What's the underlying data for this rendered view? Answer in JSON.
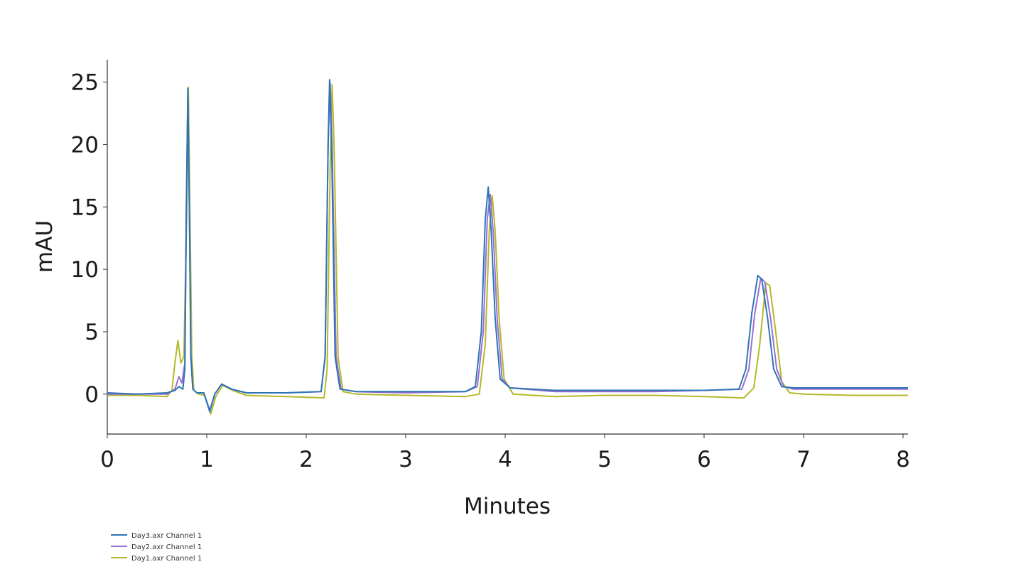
{
  "chart_data": {
    "type": "line",
    "title": "",
    "xlabel": "Minutes",
    "ylabel": "mAU",
    "xlim": [
      0,
      8.05
    ],
    "ylim": [
      -3.2,
      26.8
    ],
    "x_ticks": [
      0,
      1,
      2,
      3,
      4,
      5,
      6,
      7,
      8
    ],
    "y_ticks": [
      0,
      5,
      10,
      15,
      20,
      25
    ],
    "grid": false,
    "legend_position": "bottom-left",
    "series": [
      {
        "name": "Day3.axr Channel 1",
        "color": "#2e75b6",
        "points": [
          [
            0,
            0.1
          ],
          [
            0.3,
            0.0
          ],
          [
            0.6,
            0.1
          ],
          [
            0.68,
            0.3
          ],
          [
            0.72,
            0.6
          ],
          [
            0.76,
            0.4
          ],
          [
            0.78,
            2.0
          ],
          [
            0.795,
            15
          ],
          [
            0.81,
            24.5
          ],
          [
            0.825,
            15
          ],
          [
            0.84,
            3
          ],
          [
            0.86,
            0.4
          ],
          [
            0.9,
            0.1
          ],
          [
            0.97,
            0.1
          ],
          [
            1.03,
            -1.4
          ],
          [
            1.08,
            0.0
          ],
          [
            1.15,
            0.8
          ],
          [
            1.25,
            0.4
          ],
          [
            1.4,
            0.1
          ],
          [
            1.8,
            0.1
          ],
          [
            2.15,
            0.2
          ],
          [
            2.19,
            3
          ],
          [
            2.22,
            20
          ],
          [
            2.235,
            25.2
          ],
          [
            2.255,
            20
          ],
          [
            2.29,
            3
          ],
          [
            2.34,
            0.4
          ],
          [
            2.5,
            0.2
          ],
          [
            3.0,
            0.2
          ],
          [
            3.6,
            0.2
          ],
          [
            3.7,
            0.6
          ],
          [
            3.76,
            5
          ],
          [
            3.8,
            14
          ],
          [
            3.83,
            16.6
          ],
          [
            3.86,
            13
          ],
          [
            3.9,
            6
          ],
          [
            3.95,
            1.2
          ],
          [
            4.05,
            0.5
          ],
          [
            4.5,
            0.3
          ],
          [
            5.0,
            0.3
          ],
          [
            5.5,
            0.3
          ],
          [
            6.0,
            0.3
          ],
          [
            6.35,
            0.4
          ],
          [
            6.42,
            2
          ],
          [
            6.48,
            6.5
          ],
          [
            6.54,
            9.5
          ],
          [
            6.58,
            9.2
          ],
          [
            6.64,
            6
          ],
          [
            6.7,
            2
          ],
          [
            6.78,
            0.6
          ],
          [
            6.9,
            0.5
          ],
          [
            7.5,
            0.5
          ],
          [
            8.05,
            0.5
          ]
        ]
      },
      {
        "name": "Day2.axr Channel 1",
        "color": "#9b6fd4",
        "points": [
          [
            0,
            0.0
          ],
          [
            0.3,
            0.0
          ],
          [
            0.6,
            0.0
          ],
          [
            0.68,
            0.4
          ],
          [
            0.72,
            1.4
          ],
          [
            0.75,
            0.9
          ],
          [
            0.78,
            2.5
          ],
          [
            0.795,
            15
          ],
          [
            0.81,
            24.5
          ],
          [
            0.825,
            15
          ],
          [
            0.84,
            3
          ],
          [
            0.86,
            0.4
          ],
          [
            0.9,
            0.1
          ],
          [
            0.97,
            0.1
          ],
          [
            1.03,
            -1.3
          ],
          [
            1.08,
            0.0
          ],
          [
            1.15,
            0.8
          ],
          [
            1.25,
            0.4
          ],
          [
            1.4,
            0.1
          ],
          [
            1.8,
            0.1
          ],
          [
            2.15,
            0.2
          ],
          [
            2.19,
            3
          ],
          [
            2.22,
            20
          ],
          [
            2.24,
            25.0
          ],
          [
            2.26,
            20
          ],
          [
            2.3,
            3
          ],
          [
            2.35,
            0.4
          ],
          [
            2.5,
            0.2
          ],
          [
            3.0,
            0.1
          ],
          [
            3.6,
            0.2
          ],
          [
            3.72,
            0.6
          ],
          [
            3.78,
            5
          ],
          [
            3.82,
            14
          ],
          [
            3.85,
            16.0
          ],
          [
            3.88,
            13
          ],
          [
            3.92,
            6
          ],
          [
            3.97,
            1.2
          ],
          [
            4.05,
            0.5
          ],
          [
            4.5,
            0.2
          ],
          [
            5.0,
            0.2
          ],
          [
            5.5,
            0.2
          ],
          [
            6.0,
            0.3
          ],
          [
            6.38,
            0.4
          ],
          [
            6.45,
            2
          ],
          [
            6.51,
            6.5
          ],
          [
            6.57,
            9.3
          ],
          [
            6.61,
            9.0
          ],
          [
            6.67,
            6
          ],
          [
            6.73,
            2
          ],
          [
            6.8,
            0.6
          ],
          [
            6.9,
            0.4
          ],
          [
            7.5,
            0.4
          ],
          [
            8.05,
            0.4
          ]
        ]
      },
      {
        "name": "Day1.axr Channel 1",
        "color": "#b5b82a",
        "points": [
          [
            0,
            -0.1
          ],
          [
            0.3,
            -0.1
          ],
          [
            0.6,
            -0.2
          ],
          [
            0.65,
            0.3
          ],
          [
            0.68,
            2.5
          ],
          [
            0.71,
            4.3
          ],
          [
            0.74,
            2.5
          ],
          [
            0.77,
            3.0
          ],
          [
            0.8,
            15
          ],
          [
            0.815,
            24.6
          ],
          [
            0.83,
            15
          ],
          [
            0.85,
            3
          ],
          [
            0.87,
            0.3
          ],
          [
            0.92,
            0.0
          ],
          [
            0.98,
            -0.1
          ],
          [
            1.04,
            -1.6
          ],
          [
            1.09,
            -0.2
          ],
          [
            1.16,
            0.7
          ],
          [
            1.26,
            0.3
          ],
          [
            1.4,
            -0.1
          ],
          [
            1.8,
            -0.2
          ],
          [
            2.18,
            -0.3
          ],
          [
            2.21,
            2
          ],
          [
            2.24,
            18
          ],
          [
            2.26,
            24.8
          ],
          [
            2.28,
            20
          ],
          [
            2.32,
            3
          ],
          [
            2.37,
            0.2
          ],
          [
            2.5,
            0.0
          ],
          [
            3.0,
            -0.1
          ],
          [
            3.6,
            -0.2
          ],
          [
            3.74,
            0.0
          ],
          [
            3.8,
            4
          ],
          [
            3.84,
            13
          ],
          [
            3.87,
            15.9
          ],
          [
            3.9,
            13
          ],
          [
            3.94,
            6
          ],
          [
            3.99,
            1.2
          ],
          [
            4.08,
            0.0
          ],
          [
            4.5,
            -0.2
          ],
          [
            5.0,
            -0.1
          ],
          [
            5.5,
            -0.1
          ],
          [
            6.0,
            -0.2
          ],
          [
            6.4,
            -0.3
          ],
          [
            6.5,
            0.5
          ],
          [
            6.56,
            4
          ],
          [
            6.62,
            8.9
          ],
          [
            6.66,
            8.7
          ],
          [
            6.72,
            5
          ],
          [
            6.78,
            1
          ],
          [
            6.86,
            0.1
          ],
          [
            7.0,
            0.0
          ],
          [
            7.5,
            -0.1
          ],
          [
            8.05,
            -0.1
          ]
        ]
      }
    ]
  }
}
